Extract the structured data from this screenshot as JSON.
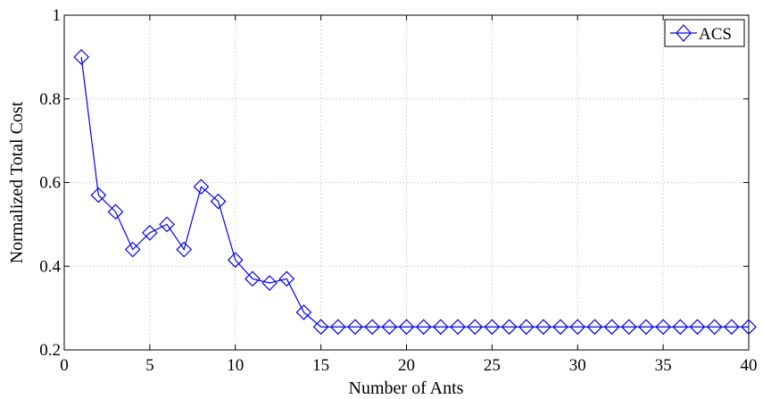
{
  "chart_data": {
    "type": "line",
    "title": "",
    "xlabel": "Number of Ants",
    "ylabel": "Normalized Total Cost",
    "xlim": [
      0,
      40
    ],
    "ylim": [
      0.2,
      1
    ],
    "xticks": [
      "0",
      "5",
      "10",
      "15",
      "20",
      "25",
      "30",
      "35",
      "40"
    ],
    "yticks": [
      "0.2",
      "0.4",
      "0.6",
      "0.8",
      "1"
    ],
    "grid": true,
    "legend_position": "top-right",
    "series": [
      {
        "name": "ACS",
        "color": "#0000ff",
        "marker": "diamond",
        "x": [
          1,
          2,
          3,
          4,
          5,
          6,
          7,
          8,
          9,
          10,
          11,
          12,
          13,
          14,
          15,
          16,
          17,
          18,
          19,
          20,
          21,
          22,
          23,
          24,
          25,
          26,
          27,
          28,
          29,
          30,
          31,
          32,
          33,
          34,
          35,
          36,
          37,
          38,
          39,
          40
        ],
        "values": [
          0.9,
          0.57,
          0.53,
          0.44,
          0.48,
          0.5,
          0.44,
          0.59,
          0.555,
          0.415,
          0.37,
          0.36,
          0.37,
          0.29,
          0.255,
          0.255,
          0.255,
          0.255,
          0.255,
          0.255,
          0.255,
          0.255,
          0.255,
          0.255,
          0.255,
          0.255,
          0.255,
          0.255,
          0.255,
          0.255,
          0.255,
          0.255,
          0.255,
          0.255,
          0.255,
          0.255,
          0.255,
          0.255,
          0.255,
          0.255
        ]
      }
    ]
  }
}
